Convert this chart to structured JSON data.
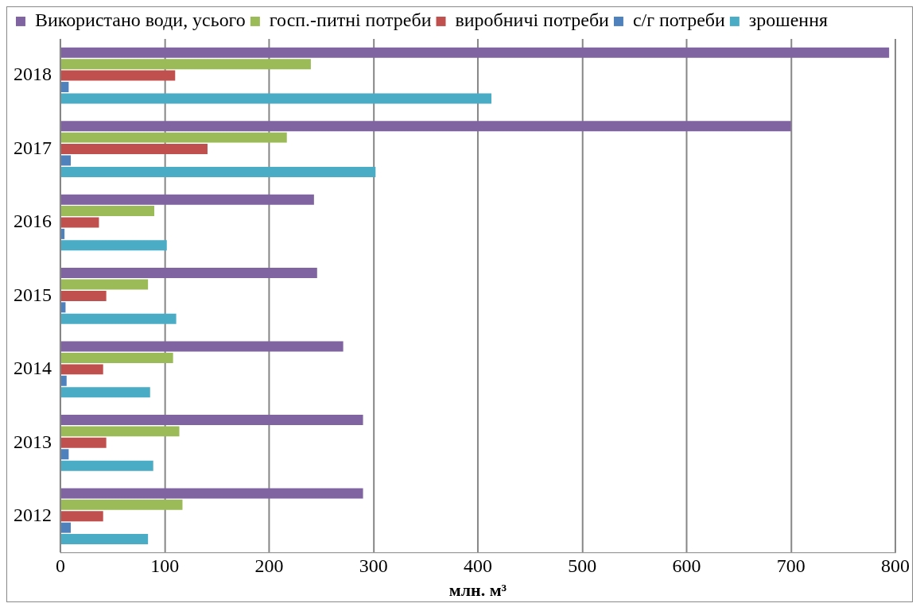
{
  "chart_data": {
    "type": "bar",
    "orientation": "horizontal",
    "xlabel": "млн. м³",
    "categories": [
      "2018",
      "2017",
      "2016",
      "2015",
      "2014",
      "2013",
      "2012"
    ],
    "series": [
      {
        "name": "Використано води, усього",
        "color": "#8064a2",
        "values": [
          794,
          700,
          243,
          246,
          271,
          290,
          290
        ]
      },
      {
        "name": "госп.-питні потреби",
        "color": "#9bbb59",
        "values": [
          240,
          217,
          90,
          84,
          108,
          114,
          117
        ]
      },
      {
        "name": "виробничі потреби",
        "color": "#c0504d",
        "values": [
          110,
          141,
          37,
          44,
          41,
          44,
          41
        ]
      },
      {
        "name": "с/г потреби",
        "color": "#4f81bd",
        "values": [
          8,
          10,
          4,
          5,
          6,
          8,
          10
        ]
      },
      {
        "name": "зрошення",
        "color": "#4bacc6",
        "values": [
          413,
          302,
          102,
          111,
          86,
          89,
          84
        ]
      }
    ],
    "xlim": [
      0,
      800
    ],
    "xticks": [
      0,
      100,
      200,
      300,
      400,
      500,
      600,
      700,
      800
    ],
    "grid": "x",
    "legend": "top"
  }
}
